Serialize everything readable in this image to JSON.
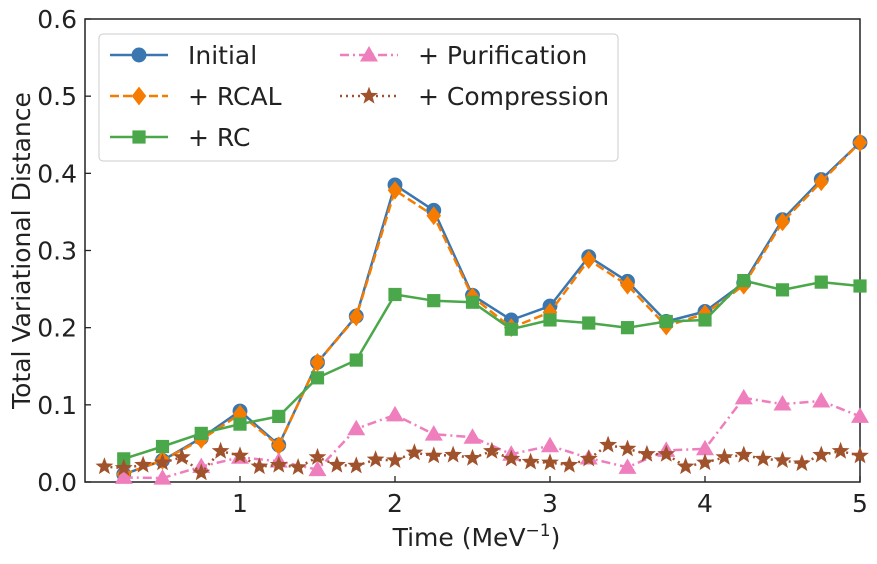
{
  "chart_data": {
    "type": "line",
    "title": "",
    "xlabel": "Time (MeV",
    "xlabel_sup": "−1",
    "xlabel_close": ")",
    "ylabel": "Total Variational Distance",
    "xlim": [
      0,
      5
    ],
    "ylim": [
      0,
      0.6
    ],
    "xticks": [
      1,
      2,
      3,
      4,
      5
    ],
    "yticks": [
      0.0,
      0.1,
      0.2,
      0.3,
      0.4,
      0.5,
      0.6
    ],
    "ytick_labels": [
      "0.0",
      "0.1",
      "0.2",
      "0.3",
      "0.4",
      "0.5",
      "0.6"
    ],
    "grid": false,
    "legend_position": "upper-left",
    "series": [
      {
        "name": "Initial",
        "color": "#3a76af",
        "marker": "circle",
        "dash": "solid",
        "x": [
          0.25,
          0.5,
          0.75,
          1.0,
          1.25,
          1.5,
          1.75,
          2.0,
          2.25,
          2.5,
          2.75,
          3.0,
          3.25,
          3.5,
          3.75,
          4.0,
          4.25,
          4.5,
          4.75,
          5.0
        ],
        "y": [
          0.01,
          0.028,
          0.057,
          0.092,
          0.048,
          0.155,
          0.215,
          0.385,
          0.352,
          0.242,
          0.21,
          0.228,
          0.292,
          0.26,
          0.208,
          0.221,
          0.258,
          0.34,
          0.392,
          0.44
        ]
      },
      {
        "name": "+ RCAL",
        "color": "#f57c00",
        "marker": "diamond",
        "dash": "dashed",
        "x": [
          0.25,
          0.5,
          0.75,
          1.0,
          1.25,
          1.5,
          1.75,
          2.0,
          2.25,
          2.5,
          2.75,
          3.0,
          3.25,
          3.5,
          3.75,
          4.0,
          4.25,
          4.5,
          4.75,
          5.0
        ],
        "y": [
          0.01,
          0.028,
          0.055,
          0.088,
          0.047,
          0.155,
          0.214,
          0.378,
          0.345,
          0.24,
          0.2,
          0.22,
          0.288,
          0.255,
          0.202,
          0.218,
          0.255,
          0.337,
          0.389,
          0.44
        ]
      },
      {
        "name": "+ RC",
        "color": "#4aa74a",
        "marker": "square",
        "dash": "solid",
        "x": [
          0.25,
          0.5,
          0.75,
          1.0,
          1.25,
          1.5,
          1.75,
          2.0,
          2.25,
          2.5,
          2.75,
          3.0,
          3.25,
          3.5,
          3.75,
          4.0,
          4.25,
          4.5,
          4.75,
          5.0
        ],
        "y": [
          0.03,
          0.046,
          0.063,
          0.075,
          0.085,
          0.135,
          0.158,
          0.243,
          0.235,
          0.233,
          0.198,
          0.21,
          0.206,
          0.2,
          0.208,
          0.21,
          0.261,
          0.249,
          0.259,
          0.254
        ]
      },
      {
        "name": "+ Purification",
        "color": "#ef7ebd",
        "marker": "triangle",
        "dash": "dashdot",
        "x": [
          0.25,
          0.5,
          0.75,
          1.0,
          1.25,
          1.5,
          1.75,
          2.0,
          2.25,
          2.5,
          2.75,
          3.0,
          3.25,
          3.5,
          3.75,
          4.0,
          4.25,
          4.5,
          4.75,
          5.0
        ],
        "y": [
          0.006,
          0.005,
          0.02,
          0.032,
          0.027,
          0.016,
          0.069,
          0.087,
          0.062,
          0.058,
          0.036,
          0.047,
          0.031,
          0.019,
          0.041,
          0.043,
          0.109,
          0.101,
          0.105,
          0.085
        ]
      },
      {
        "name": "+ Compression",
        "color": "#a0522d",
        "marker": "star",
        "dash": "dotted",
        "x": [
          0.125,
          0.25,
          0.375,
          0.5,
          0.625,
          0.75,
          0.875,
          1.0,
          1.125,
          1.25,
          1.375,
          1.5,
          1.625,
          1.75,
          1.875,
          2.0,
          2.125,
          2.25,
          2.375,
          2.5,
          2.625,
          2.75,
          2.875,
          3.0,
          3.125,
          3.25,
          3.375,
          3.5,
          3.625,
          3.75,
          3.875,
          4.0,
          4.125,
          4.25,
          4.375,
          4.5,
          4.625,
          4.75,
          4.875,
          5.0
        ],
        "y": [
          0.02,
          0.018,
          0.022,
          0.025,
          0.032,
          0.012,
          0.04,
          0.034,
          0.02,
          0.022,
          0.019,
          0.032,
          0.022,
          0.021,
          0.029,
          0.028,
          0.038,
          0.034,
          0.035,
          0.031,
          0.04,
          0.03,
          0.026,
          0.025,
          0.022,
          0.03,
          0.048,
          0.043,
          0.036,
          0.036,
          0.02,
          0.025,
          0.032,
          0.035,
          0.03,
          0.028,
          0.024,
          0.035,
          0.04,
          0.034
        ]
      }
    ]
  }
}
